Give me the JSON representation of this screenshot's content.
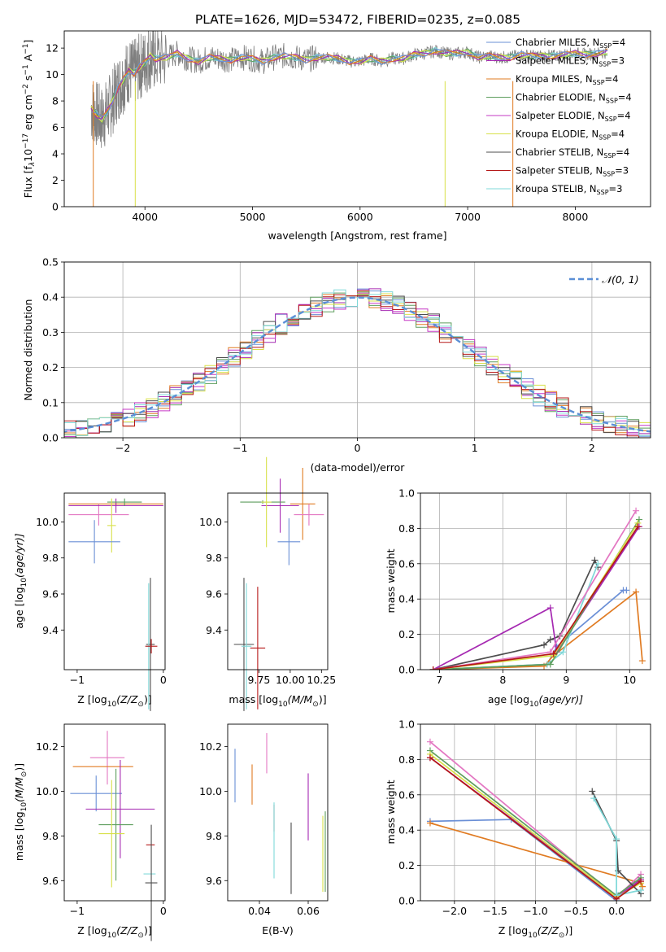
{
  "figure_title": "PLATE=1626, MJD=53472, FIBERID=0235, z=0.085",
  "colors": {
    "Chabrier MILES": "#6a8fd6",
    "Salpeter MILES": "#a62ab2",
    "Kroupa MILES": "#e07b22",
    "Chabrier ELODIE": "#5e9e5e",
    "Salpeter ELODIE": "#c639c6",
    "Kroupa ELODIE": "#d8e04a",
    "Chabrier STELIB": "#4d4d4d",
    "Salpeter STELIB": "#b51818",
    "Kroupa STELIB": "#7fd8d8",
    "pink": "#e377c2",
    "data": "#7f7f7f",
    "gauss": "#5b8fd6"
  },
  "chart_data": [
    {
      "id": "spectrum",
      "type": "line",
      "title": "PLATE=1626, MJD=53472, FIBERID=0235, z=0.085",
      "xlabel": "wavelength [Angstrom, rest frame]",
      "ylabel_main": "Flux [f",
      "ylabel_sub": "λ",
      "ylabel_rest": "10",
      "ylabel_exp": "−17",
      "ylabel_units": " erg cm",
      "ylabel_cm_exp": "−2",
      "ylabel_s": " s",
      "ylabel_s_exp": "−1",
      "ylabel_A": " A",
      "ylabel_A_exp": "−1",
      "ylabel_close": "]",
      "xlim": [
        3250,
        8700
      ],
      "ylim": [
        0,
        13.3
      ],
      "xticks": [
        4000,
        5000,
        6000,
        7000,
        8000
      ],
      "yticks": [
        0,
        2,
        4,
        6,
        8,
        10,
        12
      ],
      "data_series": {
        "name": "data",
        "x": [
          3500,
          3550,
          3600,
          3650,
          3700,
          3750,
          3800,
          3850,
          3900,
          3950,
          4000,
          4050,
          4100,
          4200,
          4300,
          4400,
          4500,
          4600,
          4700,
          4800,
          4900,
          5000,
          5100,
          5200,
          5300,
          5400,
          5500,
          5600,
          5700,
          5800,
          5900,
          6000,
          6100,
          6200,
          6300,
          6400,
          6500,
          6600,
          6700,
          6800,
          6900,
          7000,
          7100,
          7200,
          7300,
          7400,
          7500,
          7600,
          7700,
          7800,
          7900,
          8000,
          8100,
          8200,
          8300
        ],
        "y": [
          7.4,
          7.0,
          6.6,
          7.2,
          8.0,
          9.0,
          9.6,
          10.3,
          10.1,
          10.6,
          10.9,
          11.4,
          11.2,
          11.3,
          11.6,
          11.2,
          11.0,
          11.3,
          11.2,
          11.1,
          11.3,
          11.2,
          11.0,
          11.3,
          11.4,
          11.3,
          11.1,
          11.3,
          11.3,
          11.2,
          11.0,
          11.0,
          11.2,
          11.0,
          11.2,
          11.2,
          11.5,
          11.6,
          11.8,
          11.6,
          11.6,
          11.7,
          11.3,
          11.4,
          11.3,
          11.3,
          11.5,
          11.4,
          11.4,
          11.4,
          11.5,
          11.6,
          11.5,
          11.6,
          11.7
        ]
      },
      "legend": [
        {
          "label": "Chabrier MILES, N",
          "sub": "SSP",
          "tail": "=4",
          "color": "Chabrier MILES"
        },
        {
          "label": "Salpeter MILES, N",
          "sub": "SSP",
          "tail": "=3",
          "color": "Salpeter MILES"
        },
        {
          "label": "Kroupa MILES, N",
          "sub": "SSP",
          "tail": "=4",
          "color": "Kroupa MILES"
        },
        {
          "label": "Chabrier ELODIE, N",
          "sub": "SSP",
          "tail": "=4",
          "color": "Chabrier ELODIE"
        },
        {
          "label": "Salpeter ELODIE, N",
          "sub": "SSP",
          "tail": "=4",
          "color": "Salpeter ELODIE"
        },
        {
          "label": "Kroupa ELODIE, N",
          "sub": "SSP",
          "tail": "=4",
          "color": "Kroupa ELODIE"
        },
        {
          "label": "Chabrier STELIB, N",
          "sub": "SSP",
          "tail": "=4",
          "color": "Chabrier STELIB"
        },
        {
          "label": "Salpeter STELIB, N",
          "sub": "SSP",
          "tail": "=3",
          "color": "Salpeter STELIB"
        },
        {
          "label": "Kroupa STELIB, N",
          "sub": "SSP",
          "tail": "=3",
          "color": "Kroupa STELIB"
        }
      ]
    },
    {
      "id": "residuals",
      "type": "line",
      "xlabel": "(data-model)/error",
      "ylabel": "Normed distribution",
      "xlim": [
        -2.5,
        2.5
      ],
      "ylim": [
        0,
        0.5
      ],
      "xticks": [
        -2,
        -1,
        0,
        1,
        2
      ],
      "xtick_labels": [
        "−2",
        "−1",
        "0",
        "1",
        "2"
      ],
      "yticks": [
        0.0,
        0.1,
        0.2,
        0.3,
        0.4,
        0.5
      ],
      "ytick_labels": [
        "0.0",
        "0.1",
        "0.2",
        "0.3",
        "0.4",
        "0.5"
      ],
      "grid": true,
      "legend_label": "𝒩(0, 1)",
      "gauss_curve": "N(0,1) density"
    },
    {
      "id": "age_vs_Z",
      "type": "scatter",
      "xlabel": "Z [log",
      "xlabel_sub": "10",
      "xlabel_rest": "(Z/Z",
      "xlabel_sun": "⊙",
      "xlabel_close": ")]",
      "ylabel": "age  [log",
      "ylabel_sub": "10",
      "ylabel_rest": "(age/yr)]",
      "xlim": [
        -1.15,
        0.02
      ],
      "ylim": [
        9.18,
        10.16
      ],
      "xticks": [
        -1,
        0
      ],
      "xtick_labels": [
        "−1",
        "0"
      ],
      "yticks": [
        9.4,
        9.6,
        9.8,
        10.0
      ],
      "ytick_labels": [
        "9.4",
        "9.6",
        "9.8",
        "10.0"
      ],
      "points": [
        {
          "c": "Kroupa MILES",
          "x": -0.55,
          "y": 10.1,
          "xe": 0.55,
          "ye": 0.01
        },
        {
          "c": "pink",
          "x": -0.75,
          "y": 10.04,
          "xe": 0.35,
          "ye": 0.06
        },
        {
          "c": "Salpeter MILES",
          "x": -0.55,
          "y": 10.09,
          "xe": 0.55,
          "ye": 0.04
        },
        {
          "c": "Chabrier ELODIE",
          "x": -0.45,
          "y": 10.11,
          "xe": 0.2,
          "ye": 0.02
        },
        {
          "c": "Kroupa ELODIE",
          "x": -0.6,
          "y": 9.98,
          "xe": 0.05,
          "ye": 0.15
        },
        {
          "c": "Chabrier MILES",
          "x": -0.8,
          "y": 9.89,
          "xe": 0.3,
          "ye": 0.12
        },
        {
          "c": "Chabrier STELIB",
          "x": -0.15,
          "y": 9.32,
          "xe": 0.05,
          "ye": 0.37
        },
        {
          "c": "Kroupa STELIB",
          "x": -0.17,
          "y": 9.31,
          "xe": 0.03,
          "ye": 0.35
        },
        {
          "c": "Salpeter STELIB",
          "x": -0.14,
          "y": 9.31,
          "xe": 0.07,
          "ye": 0.04
        }
      ]
    },
    {
      "id": "age_vs_mass",
      "type": "scatter",
      "xlabel": "mass [log",
      "xlabel_sub": "10",
      "xlabel_rest": "(M/M",
      "xlabel_sun": "⊙",
      "xlabel_close": ")]",
      "xlim": [
        9.5,
        10.3
      ],
      "ylim": [
        9.18,
        10.16
      ],
      "xticks": [
        9.75,
        10.0,
        10.25
      ],
      "xtick_labels": [
        "9.75",
        "10.00",
        "10.25"
      ],
      "yticks": [
        9.4,
        9.6,
        9.8,
        10.0
      ],
      "ytick_labels": [
        "9.4",
        "9.6",
        "9.8",
        "10.0"
      ],
      "points": [
        {
          "c": "Kroupa MILES",
          "x": 10.1,
          "y": 10.1,
          "xe": 0.1,
          "ye": 0.2
        },
        {
          "c": "pink",
          "x": 10.15,
          "y": 10.04,
          "xe": 0.12,
          "ye": 0.06
        },
        {
          "c": "Salpeter MILES",
          "x": 9.92,
          "y": 10.09,
          "xe": 0.15,
          "ye": 0.15
        },
        {
          "c": "Chabrier ELODIE",
          "x": 9.78,
          "y": 10.11,
          "xe": 0.18,
          "ye": 0.01
        },
        {
          "c": "Kroupa ELODIE",
          "x": 9.81,
          "y": 10.11,
          "xe": 0.04,
          "ye": 0.25
        },
        {
          "c": "Chabrier MILES",
          "x": 9.99,
          "y": 9.89,
          "xe": 0.09,
          "ye": 0.13
        },
        {
          "c": "Chabrier STELIB",
          "x": 9.63,
          "y": 9.32,
          "xe": 0.08,
          "ye": 0.37
        },
        {
          "c": "Kroupa STELIB",
          "x": 9.65,
          "y": 9.31,
          "xe": 0.04,
          "ye": 0.35
        },
        {
          "c": "Salpeter STELIB",
          "x": 9.74,
          "y": 9.3,
          "xe": 0.06,
          "ye": 0.34
        }
      ]
    },
    {
      "id": "weight_vs_age",
      "type": "line",
      "xlabel": "age  [log",
      "xlabel_sub": "10",
      "xlabel_rest": "(age/yr)]",
      "ylabel": "mass weight",
      "xlim": [
        6.7,
        10.33
      ],
      "ylim": [
        0,
        1.0
      ],
      "xticks": [
        7,
        8,
        9,
        10
      ],
      "xtick_labels": [
        "7",
        "8",
        "9",
        "10"
      ],
      "yticks": [
        0.0,
        0.2,
        0.4,
        0.6,
        0.8,
        1.0
      ],
      "ytick_labels": [
        "0.0",
        "0.2",
        "0.4",
        "0.6",
        "0.8",
        "1.0"
      ],
      "grid": true,
      "series": [
        {
          "c": "Chabrier MILES",
          "x": [
            6.9,
            8.7,
            8.85,
            9.9,
            9.95
          ],
          "y": [
            0.0,
            0.03,
            0.13,
            0.45,
            0.45
          ]
        },
        {
          "c": "Kroupa MILES",
          "x": [
            6.9,
            8.65,
            8.8,
            10.1,
            10.2
          ],
          "y": [
            0.0,
            0.02,
            0.08,
            0.44,
            0.05
          ]
        },
        {
          "c": "Chabrier STELIB",
          "x": [
            6.9,
            8.65,
            8.75,
            8.9,
            9.45,
            9.5
          ],
          "y": [
            0.0,
            0.14,
            0.17,
            0.19,
            0.62,
            0.58
          ]
        },
        {
          "c": "Kroupa STELIB",
          "x": [
            6.9,
            8.7,
            8.95,
            9.5
          ],
          "y": [
            0.0,
            0.03,
            0.1,
            0.6
          ]
        },
        {
          "c": "Salpeter MILES",
          "x": [
            6.9,
            8.75,
            8.85,
            10.15
          ],
          "y": [
            0.0,
            0.35,
            0.1,
            0.81
          ]
        },
        {
          "c": "Chabrier ELODIE",
          "x": [
            6.9,
            8.75,
            10.15
          ],
          "y": [
            0.0,
            0.03,
            0.85
          ]
        },
        {
          "c": "Kroupa ELODIE",
          "x": [
            6.9,
            8.8,
            10.13
          ],
          "y": [
            0.0,
            0.08,
            0.83
          ]
        },
        {
          "c": "pink",
          "x": [
            6.9,
            8.75,
            10.1
          ],
          "y": [
            0.0,
            0.1,
            0.9
          ]
        },
        {
          "c": "Salpeter STELIB",
          "x": [
            6.9,
            8.8,
            10.13
          ],
          "y": [
            0.0,
            0.09,
            0.81
          ]
        }
      ]
    },
    {
      "id": "mass_vs_Z",
      "type": "scatter",
      "xlabel": "Z [log",
      "xlabel_sub": "10",
      "xlabel_rest": "(Z/Z",
      "xlabel_sun": "⊙",
      "xlabel_close": ")]",
      "ylabel": "mass [log",
      "ylabel_sub": "10",
      "ylabel_rest": "(M/M",
      "ylabel_sun": "⊙",
      "ylabel_close": ")]",
      "xlim": [
        -1.15,
        0.02
      ],
      "ylim": [
        9.51,
        10.3
      ],
      "xticks": [
        -1,
        0
      ],
      "xtick_labels": [
        "−1",
        "0"
      ],
      "yticks": [
        9.6,
        9.8,
        10.0,
        10.2
      ],
      "ytick_labels": [
        "9.6",
        "9.8",
        "10.0",
        "10.2"
      ],
      "points": [
        {
          "c": "pink",
          "x": -0.65,
          "y": 10.15,
          "xe": 0.2,
          "ye": 0.12
        },
        {
          "c": "Kroupa MILES",
          "x": -0.7,
          "y": 10.11,
          "xe": 0.35,
          "ye": 0.0
        },
        {
          "c": "Chabrier MILES",
          "x": -0.78,
          "y": 9.99,
          "xe": 0.3,
          "ye": 0.08
        },
        {
          "c": "Salpeter MILES",
          "x": -0.5,
          "y": 9.92,
          "xe": 0.4,
          "ye": 0.22
        },
        {
          "c": "Chabrier ELODIE",
          "x": -0.55,
          "y": 9.85,
          "xe": 0.2,
          "ye": 0.25
        },
        {
          "c": "Kroupa ELODIE",
          "x": -0.6,
          "y": 9.81,
          "xe": 0.15,
          "ye": 0.24
        },
        {
          "c": "Salpeter STELIB",
          "x": -0.15,
          "y": 9.76,
          "xe": 0.05,
          "ye": 0.0
        },
        {
          "c": "Kroupa STELIB",
          "x": -0.16,
          "y": 9.63,
          "xe": 0.07,
          "ye": 0.0
        },
        {
          "c": "Chabrier STELIB",
          "x": -0.14,
          "y": 9.59,
          "xe": 0.07,
          "ye": 0.26
        }
      ]
    },
    {
      "id": "mass_vs_EBV",
      "type": "scatter",
      "xlabel": "E(B-V)",
      "xlim": [
        0.027,
        0.068
      ],
      "ylim": [
        9.51,
        10.3
      ],
      "xticks": [
        0.04,
        0.06
      ],
      "xtick_labels": [
        "0.04",
        "0.06"
      ],
      "yticks": [
        9.6,
        9.8,
        10.0,
        10.2
      ],
      "ytick_labels": [
        "9.6",
        "9.8",
        "10.0",
        "10.2"
      ],
      "points": [
        {
          "c": "Chabrier MILES",
          "x": 0.03,
          "y": 10.07,
          "ye": 0.12
        },
        {
          "c": "Kroupa MILES",
          "x": 0.037,
          "y": 10.03,
          "ye": 0.09
        },
        {
          "c": "pink",
          "x": 0.043,
          "y": 10.17,
          "ye": 0.09
        },
        {
          "c": "Salpeter STELIB",
          "x": 0.046,
          "y": 9.88,
          "ye": 0.06
        },
        {
          "c": "Kroupa STELIB",
          "x": 0.046,
          "y": 9.78,
          "ye": 0.17
        },
        {
          "c": "Chabrier STELIB",
          "x": 0.053,
          "y": 9.7,
          "ye": 0.16
        },
        {
          "c": "Salpeter MILES",
          "x": 0.06,
          "y": 9.93,
          "ye": 0.15
        },
        {
          "c": "Kroupa ELODIE",
          "x": 0.066,
          "y": 9.72,
          "ye": 0.17
        },
        {
          "c": "Chabrier ELODIE",
          "x": 0.067,
          "y": 9.73,
          "ye": 0.18
        }
      ]
    },
    {
      "id": "weight_vs_Z",
      "type": "line",
      "xlabel": "Z [log",
      "xlabel_sub": "10",
      "xlabel_rest": "(Z/Z",
      "xlabel_sun": "⊙",
      "xlabel_close": ")]",
      "ylabel": "mass weight",
      "xlim": [
        -2.42,
        0.42
      ],
      "ylim": [
        0,
        1.0
      ],
      "xticks": [
        -2.0,
        -1.5,
        -1.0,
        -0.5,
        0.0
      ],
      "xtick_labels": [
        "−2.0",
        "−1.5",
        "−1.0",
        "−0.5",
        "0.0"
      ],
      "yticks": [
        0.0,
        0.2,
        0.4,
        0.6,
        0.8,
        1.0
      ],
      "ytick_labels": [
        "0.0",
        "0.2",
        "0.4",
        "0.6",
        "0.8",
        "1.0"
      ],
      "grid": true,
      "series": [
        {
          "c": "Chabrier MILES",
          "x": [
            -2.3,
            -1.3,
            0.0,
            0.02
          ],
          "y": [
            0.45,
            0.46,
            0.0,
            0.03
          ]
        },
        {
          "c": "Kroupa MILES",
          "x": [
            -2.3,
            0.3,
            0.32
          ],
          "y": [
            0.44,
            0.1,
            0.08
          ]
        },
        {
          "c": "pink",
          "x": [
            -2.3,
            0.0,
            0.3
          ],
          "y": [
            0.9,
            0.02,
            0.15
          ]
        },
        {
          "c": "Salpeter MILES",
          "x": [
            -2.3,
            0.0,
            0.3
          ],
          "y": [
            0.81,
            0.02,
            0.12
          ]
        },
        {
          "c": "Chabrier ELODIE",
          "x": [
            -2.3,
            0.0,
            0.3
          ],
          "y": [
            0.85,
            0.03,
            0.13
          ]
        },
        {
          "c": "Kroupa ELODIE",
          "x": [
            -2.3,
            0.0,
            0.3
          ],
          "y": [
            0.83,
            0.02,
            0.1
          ]
        },
        {
          "c": "Chabrier STELIB",
          "x": [
            -0.3,
            0.0,
            0.02,
            0.3
          ],
          "y": [
            0.62,
            0.34,
            0.17,
            0.04
          ]
        },
        {
          "c": "Kroupa STELIB",
          "x": [
            -0.28,
            0.0,
            0.0,
            0.3
          ],
          "y": [
            0.58,
            0.35,
            0.03,
            0.06
          ]
        },
        {
          "c": "Salpeter STELIB",
          "x": [
            -2.3,
            0.0,
            0.3
          ],
          "y": [
            0.81,
            0.01,
            0.11
          ]
        }
      ]
    }
  ]
}
